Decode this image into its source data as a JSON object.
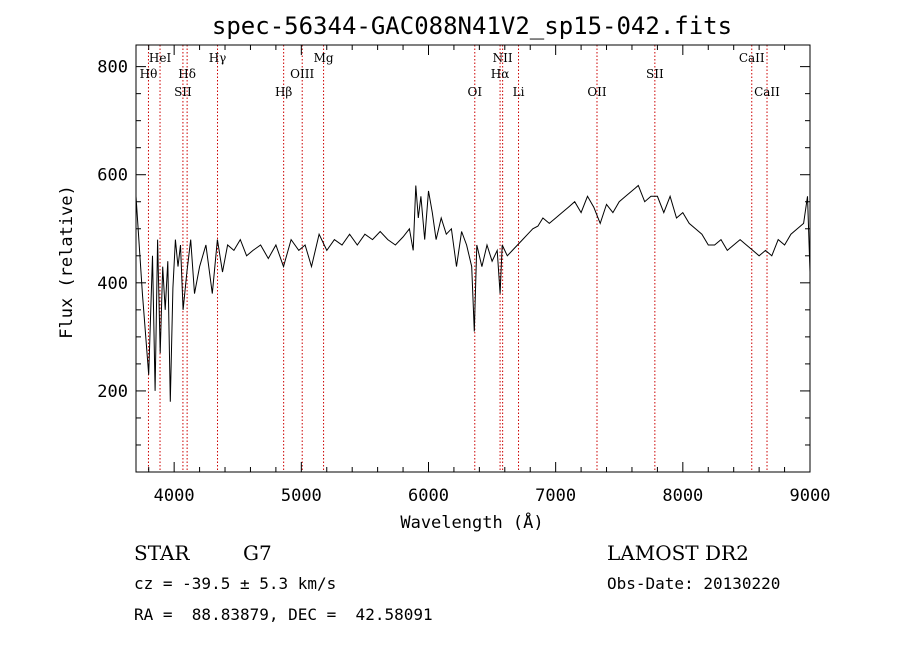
{
  "chart_data": {
    "type": "line",
    "title": "spec-56344-GAC088N41V2_sp15-042.fits",
    "xlabel": "Wavelength (Å)",
    "ylabel": "Flux (relative)",
    "xlim": [
      3700,
      9000
    ],
    "ylim": [
      50,
      840
    ],
    "x_ticks": [
      4000,
      5000,
      6000,
      7000,
      8000,
      9000
    ],
    "y_ticks": [
      200,
      400,
      600,
      800
    ],
    "grid": false,
    "line_color": "#000000",
    "marker_color": "#cc0000",
    "spectral_lines": [
      {
        "label": "Hθ",
        "x": 3798,
        "row": 2
      },
      {
        "label": "HeI",
        "x": 3889,
        "row": 1
      },
      {
        "label": "Hδ",
        "x": 4102,
        "row": 2
      },
      {
        "label": "SII",
        "x": 4069,
        "row": 3
      },
      {
        "label": "Hγ",
        "x": 4341,
        "row": 1
      },
      {
        "label": "Hβ",
        "x": 4861,
        "row": 3
      },
      {
        "label": "OIII",
        "x": 5007,
        "row": 2
      },
      {
        "label": "Mg",
        "x": 5175,
        "row": 1
      },
      {
        "label": "OI",
        "x": 6364,
        "row": 3
      },
      {
        "label": "NII",
        "x": 6583,
        "row": 1
      },
      {
        "label": "Hα",
        "x": 6563,
        "row": 2
      },
      {
        "label": "Li",
        "x": 6708,
        "row": 3
      },
      {
        "label": "OII",
        "x": 7325,
        "row": 3
      },
      {
        "label": "SII",
        "x": 7780,
        "row": 2
      },
      {
        "label": "CaII",
        "x": 8542,
        "row": 1
      },
      {
        "label": "CaII",
        "x": 8662,
        "row": 3
      }
    ],
    "series": [
      {
        "x": [
          3700,
          3750,
          3800,
          3830,
          3850,
          3870,
          3890,
          3910,
          3930,
          3950,
          3970,
          3990,
          4010,
          4030,
          4050,
          4070,
          4100,
          4130,
          4160,
          4200,
          4250,
          4300,
          4340,
          4380,
          4420,
          4470,
          4520,
          4570,
          4620,
          4680,
          4740,
          4800,
          4860,
          4920,
          4980,
          5030,
          5080,
          5140,
          5200,
          5260,
          5320,
          5380,
          5440,
          5500,
          5560,
          5620,
          5680,
          5740,
          5800,
          5850,
          5880,
          5900,
          5920,
          5940,
          5970,
          6000,
          6030,
          6060,
          6100,
          6140,
          6180,
          6220,
          6260,
          6300,
          6340,
          6360,
          6380,
          6420,
          6460,
          6500,
          6540,
          6563,
          6580,
          6620,
          6660,
          6700,
          6740,
          6780,
          6820,
          6860,
          6900,
          6950,
          7000,
          7050,
          7100,
          7150,
          7200,
          7250,
          7300,
          7350,
          7400,
          7450,
          7500,
          7550,
          7600,
          7650,
          7700,
          7750,
          7800,
          7850,
          7900,
          7950,
          8000,
          8050,
          8100,
          8150,
          8200,
          8250,
          8300,
          8350,
          8400,
          8450,
          8500,
          8550,
          8600,
          8650,
          8700,
          8750,
          8800,
          8850,
          8900,
          8950,
          8980,
          9000
        ],
        "y": [
          560,
          380,
          230,
          450,
          200,
          480,
          270,
          430,
          350,
          440,
          180,
          390,
          480,
          430,
          470,
          350,
          420,
          480,
          380,
          430,
          470,
          380,
          480,
          420,
          470,
          460,
          480,
          450,
          460,
          470,
          445,
          470,
          430,
          480,
          460,
          470,
          430,
          490,
          460,
          480,
          470,
          490,
          470,
          490,
          480,
          495,
          480,
          470,
          485,
          500,
          460,
          580,
          520,
          560,
          480,
          570,
          530,
          480,
          520,
          490,
          500,
          430,
          495,
          470,
          430,
          310,
          470,
          430,
          470,
          440,
          460,
          380,
          470,
          450,
          460,
          470,
          480,
          490,
          500,
          505,
          520,
          510,
          520,
          530,
          540,
          550,
          530,
          560,
          540,
          510,
          545,
          530,
          550,
          560,
          570,
          580,
          550,
          560,
          560,
          530,
          560,
          520,
          530,
          510,
          500,
          490,
          470,
          470,
          480,
          460,
          470,
          480,
          470,
          460,
          450,
          460,
          450,
          480,
          470,
          490,
          500,
          510,
          560,
          420
        ]
      }
    ]
  },
  "footer": {
    "object_type": "STAR",
    "subclass": "G7",
    "survey": "LAMOST DR2",
    "redshift": "cz = -39.5 ± 5.3 km/s",
    "obs_date": "Obs-Date: 20130220",
    "coords": "RA =  88.83879, DEC =  42.58091"
  }
}
